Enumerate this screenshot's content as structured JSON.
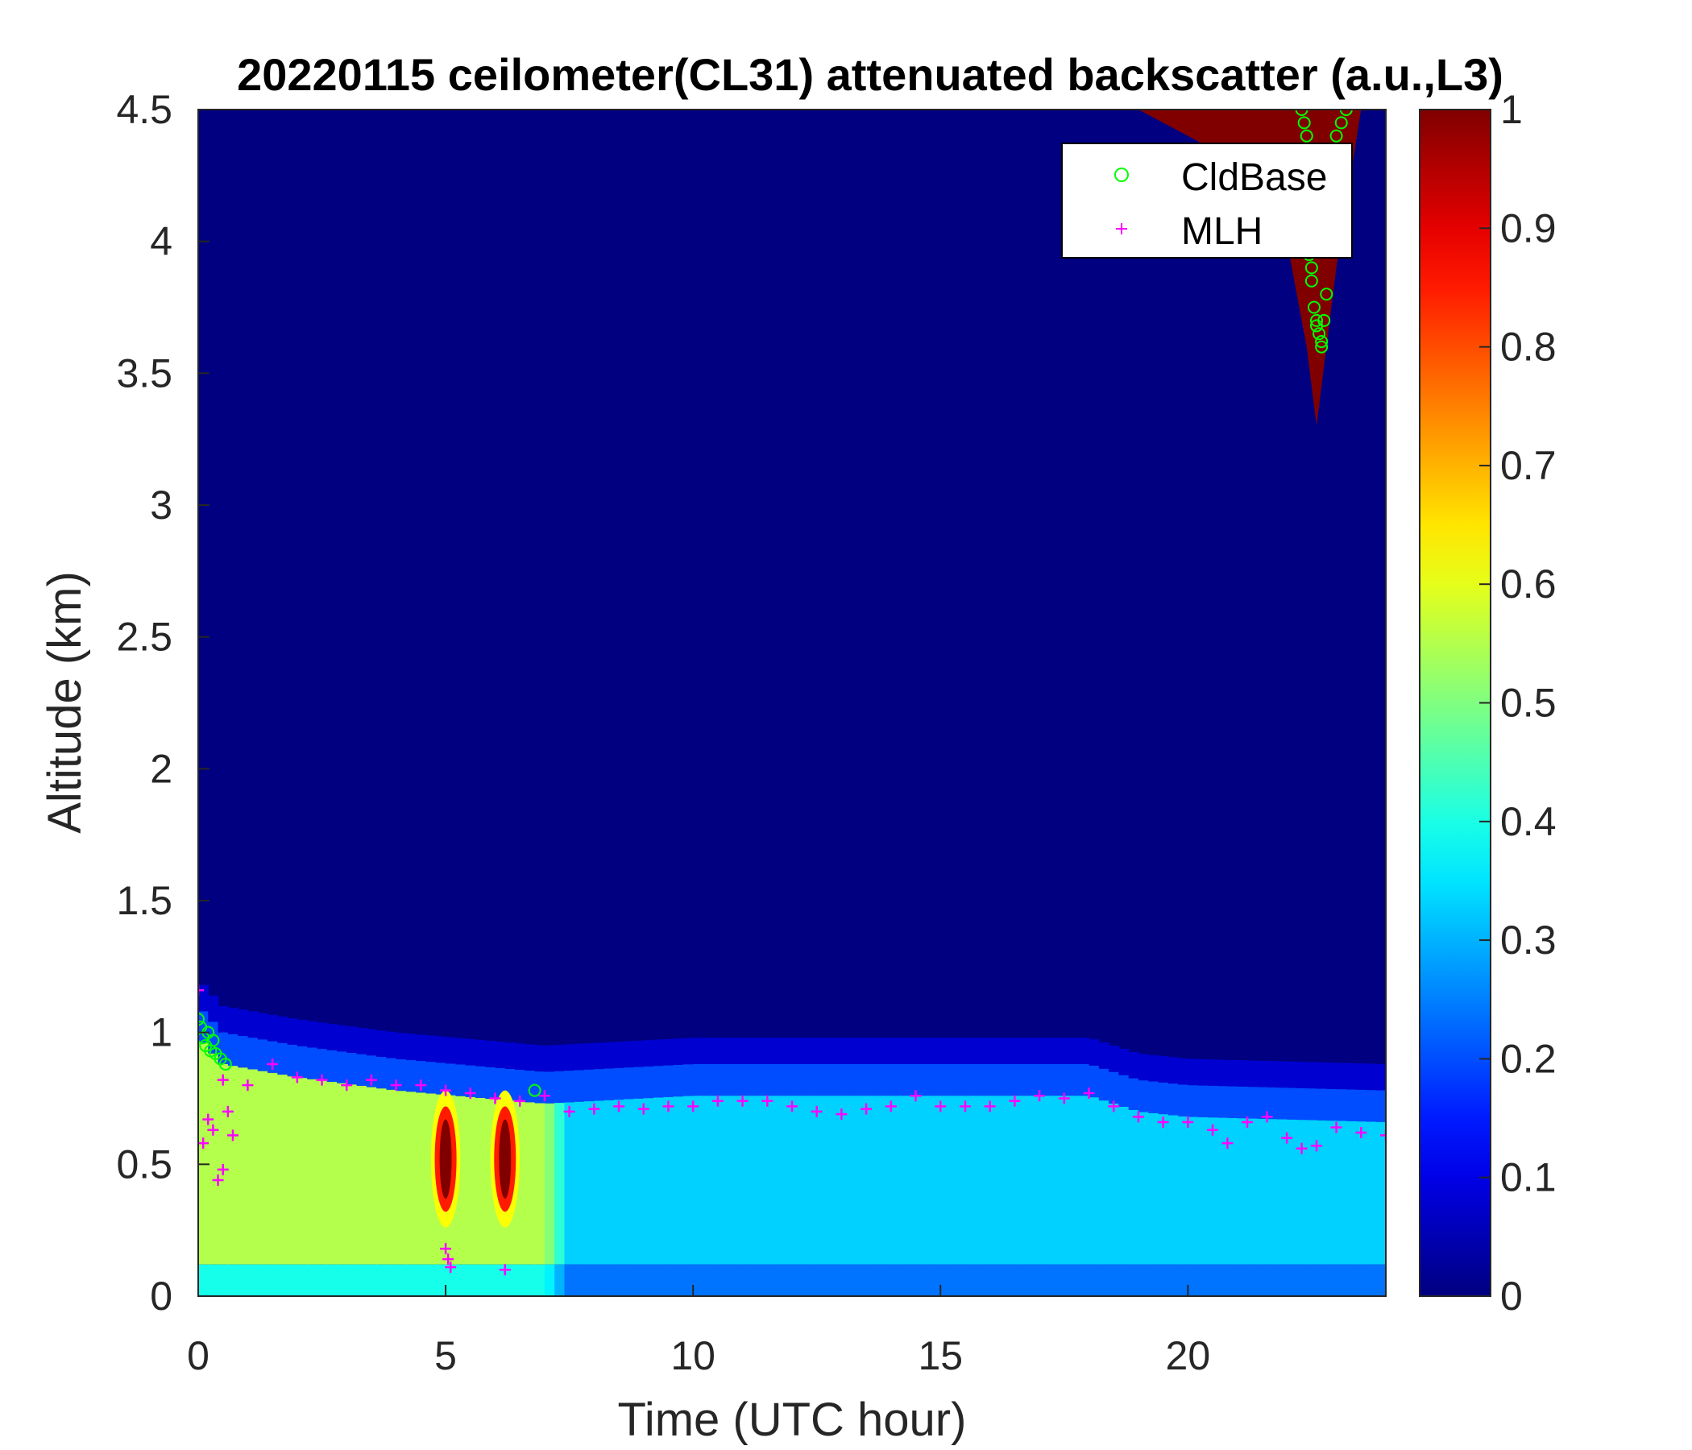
{
  "chart_data": {
    "type": "heatmap",
    "title": "20220115 ceilometer(CL31) attenuated backscatter (a.u.,L3)",
    "xlabel": "Time (UTC hour)",
    "ylabel": "Altitude (km)",
    "xlim": [
      0,
      24
    ],
    "ylim": [
      0,
      4.5
    ],
    "xticks": [
      "0",
      "5",
      "10",
      "15",
      "20"
    ],
    "xtick_values": [
      0,
      5,
      10,
      15,
      20
    ],
    "yticks": [
      "0",
      "0.5",
      "1",
      "1.5",
      "2",
      "2.5",
      "3",
      "3.5",
      "4",
      "4.5"
    ],
    "ytick_values": [
      0,
      0.5,
      1,
      1.5,
      2,
      2.5,
      3,
      3.5,
      4,
      4.5
    ],
    "colorbar": {
      "colormap": "jet",
      "range": [
        0,
        1
      ],
      "ticks": [
        "0",
        "0.1",
        "0.2",
        "0.3",
        "0.4",
        "0.5",
        "0.6",
        "0.7",
        "0.8",
        "0.9",
        "1"
      ],
      "tick_values": [
        0,
        0.1,
        0.2,
        0.3,
        0.4,
        0.5,
        0.6,
        0.7,
        0.8,
        0.9,
        1
      ]
    },
    "field": {
      "background_value": 0.0,
      "boundary_layer_top_km": [
        [
          0,
          1.1
        ],
        [
          0.5,
          1.0
        ],
        [
          2,
          0.95
        ],
        [
          4,
          0.9
        ],
        [
          7,
          0.85
        ],
        [
          10,
          0.88
        ],
        [
          15,
          0.88
        ],
        [
          18,
          0.88
        ],
        [
          19,
          0.82
        ],
        [
          20,
          0.8
        ],
        [
          24,
          0.78
        ]
      ],
      "boundary_layer_value": [
        [
          0,
          0.55
        ],
        [
          7,
          0.55
        ],
        [
          7.5,
          0.33
        ],
        [
          24,
          0.33
        ]
      ],
      "dense_spots": [
        {
          "x": 5.0,
          "y": 0.52,
          "value": 1
        },
        {
          "x": 6.2,
          "y": 0.52,
          "value": 1
        }
      ],
      "upper_cloud_top_hour_range": [
        19.0,
        23.5
      ],
      "upper_cloud_base_km": [
        [
          19.0,
          4.5
        ],
        [
          20.5,
          4.35
        ],
        [
          21.8,
          4.2
        ],
        [
          22.4,
          3.6
        ],
        [
          22.6,
          3.3
        ],
        [
          23.0,
          3.9
        ],
        [
          23.5,
          4.5
        ]
      ],
      "upper_cloud_value": 1
    },
    "legend": {
      "placement": "top-right",
      "entries": [
        "CldBase",
        "MLH"
      ]
    },
    "series": [
      {
        "name": "CldBase",
        "marker": "circle",
        "color": "#00ff00",
        "x": [
          0.0,
          0.05,
          0.1,
          0.15,
          0.2,
          0.25,
          0.3,
          0.35,
          0.45,
          0.55,
          6.8,
          22.3,
          22.35,
          22.4,
          22.45,
          22.5,
          22.55,
          22.6,
          22.65,
          22.7,
          22.75,
          22.8,
          22.9,
          23.0,
          23.1,
          23.2,
          22.5,
          22.6,
          22.7
        ],
        "y": [
          1.05,
          1.02,
          0.98,
          0.95,
          1.0,
          0.93,
          0.97,
          0.92,
          0.9,
          0.88,
          0.78,
          4.5,
          4.45,
          4.4,
          3.95,
          3.85,
          3.75,
          3.7,
          3.65,
          3.62,
          3.7,
          3.8,
          4.35,
          4.4,
          4.45,
          4.5,
          3.9,
          3.68,
          3.6
        ]
      },
      {
        "name": "MLH",
        "marker": "plus",
        "color": "#ff00ff",
        "x": [
          0,
          0.5,
          1,
          1.5,
          2,
          2.5,
          3,
          3.5,
          4,
          4.5,
          5,
          5.5,
          6,
          6.5,
          7,
          7.5,
          8,
          8.5,
          9,
          9.5,
          10,
          10.5,
          11,
          11.5,
          12,
          12.5,
          13,
          13.5,
          14,
          14.5,
          15,
          15.5,
          16,
          16.5,
          17,
          17.5,
          18,
          18.5,
          19,
          19.5,
          20,
          20.5,
          20.8,
          21.2,
          21.6,
          22,
          22.3,
          22.6,
          23,
          23.5,
          24,
          0.1,
          0.2,
          0.3,
          0.4,
          0.5,
          0.6,
          0.7,
          5.0,
          5.05,
          5.1,
          6.2
        ],
        "y": [
          1.16,
          0.82,
          0.8,
          0.88,
          0.83,
          0.82,
          0.8,
          0.82,
          0.8,
          0.8,
          0.78,
          0.77,
          0.75,
          0.74,
          0.76,
          0.7,
          0.71,
          0.72,
          0.71,
          0.72,
          0.72,
          0.74,
          0.74,
          0.74,
          0.72,
          0.7,
          0.69,
          0.71,
          0.72,
          0.76,
          0.72,
          0.72,
          0.72,
          0.74,
          0.76,
          0.75,
          0.77,
          0.72,
          0.68,
          0.66,
          0.66,
          0.63,
          0.58,
          0.66,
          0.68,
          0.6,
          0.56,
          0.57,
          0.64,
          0.62,
          0.61,
          0.58,
          0.67,
          0.63,
          0.44,
          0.48,
          0.7,
          0.61,
          0.18,
          0.14,
          0.11,
          0.1
        ]
      }
    ]
  }
}
